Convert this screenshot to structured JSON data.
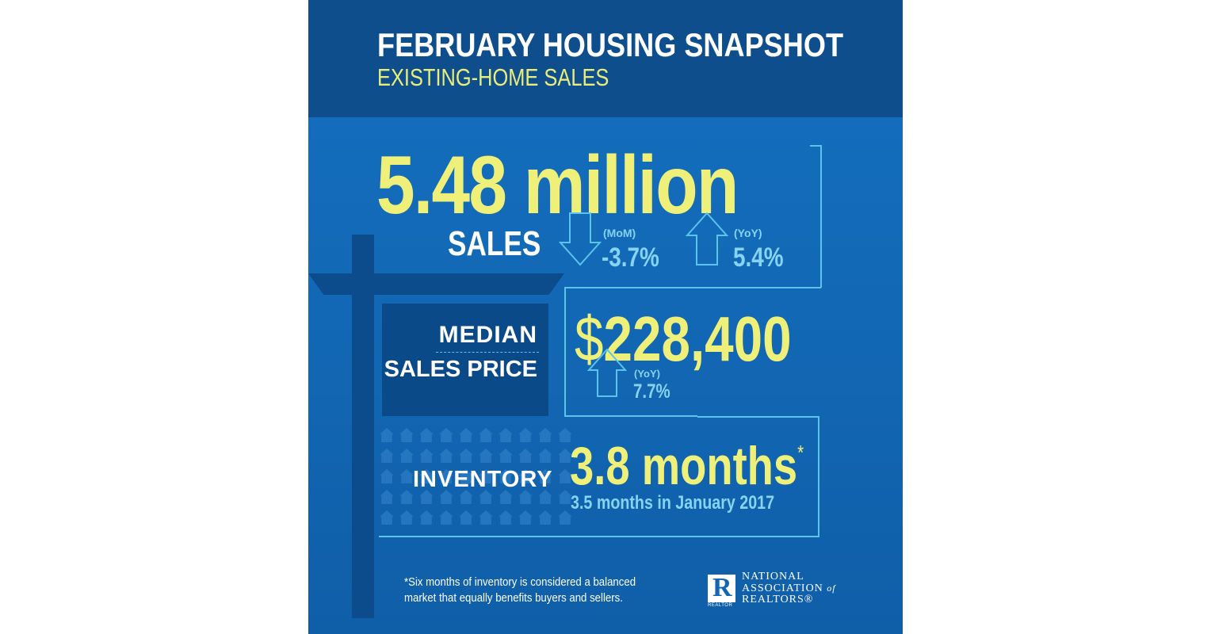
{
  "header": {
    "title": "FEBRUARY  HOUSING SNAPSHOT",
    "subtitle": "EXISTING-HOME SALES"
  },
  "sales": {
    "value": "5.48 million",
    "label": "SALES",
    "mom": {
      "label": "(MoM)",
      "value": "-3.7%",
      "direction": "down"
    },
    "yoy": {
      "label": "(YoY)",
      "value": "5.4%",
      "direction": "up"
    }
  },
  "median_price": {
    "label_line1": "MEDIAN",
    "label_line2": "SALES PRICE",
    "currency": "$",
    "value": "228,400",
    "yoy": {
      "label": "(YoY)",
      "value": "7.7%",
      "direction": "up"
    }
  },
  "inventory": {
    "label": "INVENTORY",
    "value": "3.8 months",
    "asterisk": "*",
    "comparison": "3.5 months in January 2017"
  },
  "footnote": "*Six months of inventory is considered a balanced market that equally benefits buyers and sellers.",
  "logo": {
    "mark": "R",
    "mark_caption": "REALTOR",
    "line1": "NATIONAL",
    "line2": "ASSOCIATION",
    "line2_suffix": "of",
    "line3": "REALTORS®"
  },
  "colors": {
    "header_bg": "#0e4e8c",
    "body_bg": "#1368b6",
    "accent_yellow": "#eef07a",
    "accent_light_blue": "#86d3f2",
    "outline": "#5cc3ea"
  }
}
